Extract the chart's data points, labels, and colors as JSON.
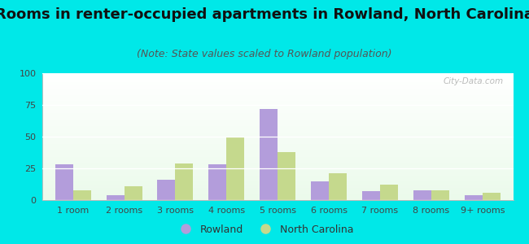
{
  "title": "Rooms in renter-occupied apartments in Rowland, North Carolina",
  "subtitle": "(Note: State values scaled to Rowland population)",
  "categories": [
    "1 room",
    "2 rooms",
    "3 rooms",
    "4 rooms",
    "5 rooms",
    "6 rooms",
    "7 rooms",
    "8 rooms",
    "9+ rooms"
  ],
  "rowland_values": [
    28,
    4,
    16,
    28,
    72,
    15,
    7,
    8,
    4
  ],
  "nc_values": [
    8,
    11,
    29,
    50,
    38,
    21,
    12,
    8,
    6
  ],
  "rowland_color": "#b39ddb",
  "nc_color": "#c5d98d",
  "background_color": "#00e8e8",
  "title_fontsize": 13,
  "subtitle_fontsize": 9,
  "ylim": [
    0,
    100
  ],
  "yticks": [
    0,
    25,
    50,
    75,
    100
  ],
  "bar_width": 0.35,
  "legend_rowland": "Rowland",
  "legend_nc": "North Carolina",
  "watermark": "City-Data.com",
  "tick_color": "#444444",
  "tick_fontsize": 8
}
